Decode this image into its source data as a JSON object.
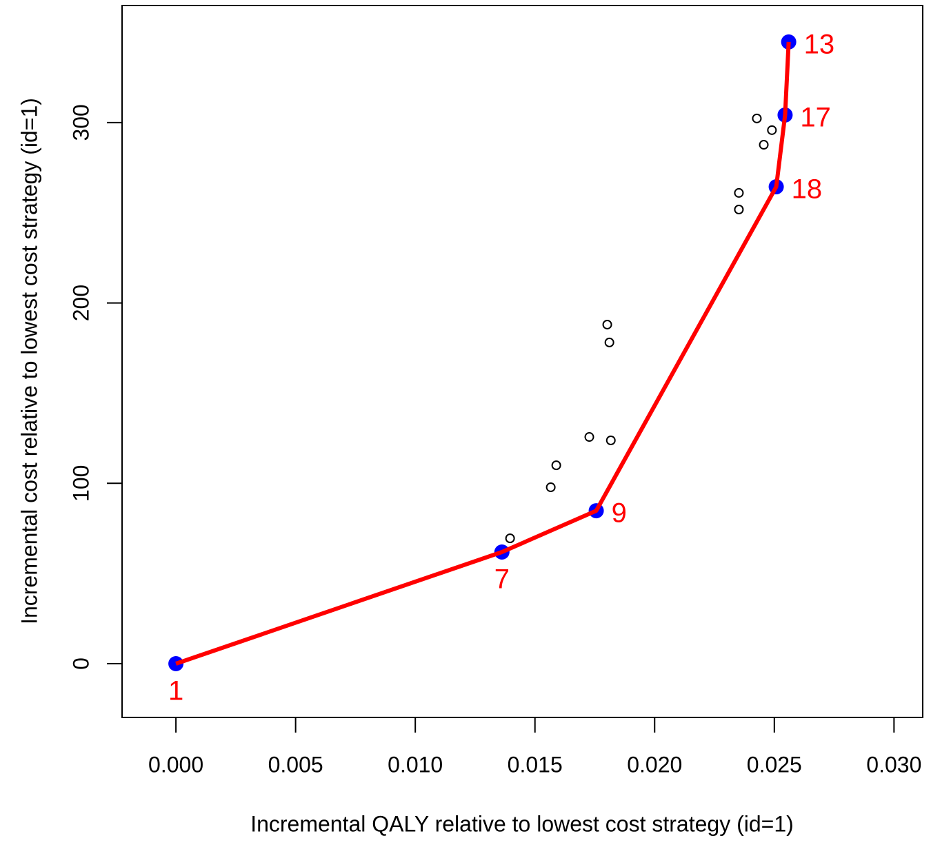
{
  "chart_data": {
    "type": "scatter",
    "x_label": "Incremental QALY relative to lowest cost strategy (id=1)",
    "y_label": "Incremental cost relative to lowest cost strategy (id=1)",
    "xlim": [
      -0.00225,
      0.0312
    ],
    "ylim": [
      -29.8,
      364.9
    ],
    "xticks": [
      {
        "value": 0,
        "label": "0.000"
      },
      {
        "value": 0.005,
        "label": "0.005"
      },
      {
        "value": 0.01,
        "label": "0.010"
      },
      {
        "value": 0.015,
        "label": "0.015"
      },
      {
        "value": 0.02,
        "label": "0.020"
      },
      {
        "value": 0.025,
        "label": "0.025"
      },
      {
        "value": 0.03,
        "label": "0.030"
      }
    ],
    "yticks": [
      0,
      100,
      200,
      300
    ],
    "series": [
      {
        "color": "#0000ff",
        "line_color": "#ff0000",
        "label_color": "#ff0000",
        "marker": "filled",
        "x": [
          0,
          0.01362,
          0.01756,
          0.02508,
          0.02545,
          0.0256
        ],
        "values": [
          0,
          61.9,
          84.8,
          264.4,
          304.2,
          344.7
        ],
        "labels": [
          "1",
          "7",
          "9",
          "18",
          "17",
          "13"
        ],
        "label_positions": [
          "below",
          "below",
          "right",
          "right",
          "right",
          "right"
        ]
      },
      {
        "color": "#000000",
        "marker": "open",
        "x": [
          0.01396,
          0.01566,
          0.01589,
          0.01727,
          0.01817,
          0.01802,
          0.01811,
          0.02352,
          0.02352,
          0.02427,
          0.02456,
          0.0249
        ],
        "values": [
          69.5,
          97.8,
          110.0,
          125.7,
          123.8,
          188.0,
          178.1,
          251.8,
          261.0,
          302.3,
          287.7,
          295.8
        ]
      }
    ]
  }
}
